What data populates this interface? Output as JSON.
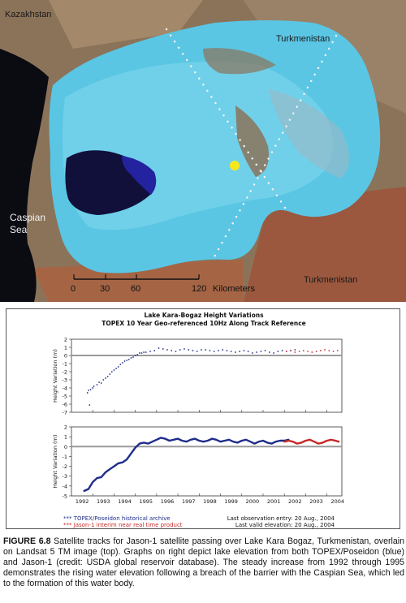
{
  "map": {
    "labels": {
      "kazakhstan": "Kazakhstan",
      "turkmenistan_north": "Turkmenistan",
      "turkmenistan_south": "Turkmenistan",
      "caspian_line1": "Caspian",
      "caspian_line2": "Sea"
    },
    "scale_bar": {
      "ticks": [
        "0",
        "30",
        "60",
        "120"
      ],
      "unit": "Kilometers"
    },
    "colors": {
      "land": "#8a6f54",
      "lake_light": "#5ac6e4",
      "lake_deep": "#10103a",
      "sea": "#0b0b12",
      "marker": "#f6e81c"
    }
  },
  "chart_data": [
    {
      "type": "scatter",
      "title": "Lake Kara-Bogaz Height Variations",
      "subtitle": "TOPEX 10 Year Geo-referenced 10Hz Along Track Reference",
      "xlabel": "",
      "ylabel": "Height Variation (m)",
      "xlim": [
        1992,
        2004.7
      ],
      "ylim": [
        -7,
        2
      ],
      "yticks": [
        "2",
        "1",
        "0",
        "-1",
        "-2",
        "-3",
        "-4",
        "-5",
        "-6",
        "-7"
      ],
      "series": [
        {
          "name": "TOPEX/Poseidon historical archive",
          "color": "#1f2d8a",
          "x": [
            1992.75,
            1992.8,
            1992.85,
            1992.9,
            1993.0,
            1993.05,
            1993.2,
            1993.3,
            1993.4,
            1993.5,
            1993.6,
            1993.7,
            1993.8,
            1993.9,
            1994.0,
            1994.1,
            1994.2,
            1994.3,
            1994.4,
            1994.5,
            1994.6,
            1994.7,
            1994.8,
            1994.9,
            1995.0,
            1995.1,
            1995.2,
            1995.3,
            1995.4,
            1995.5,
            1995.7,
            1995.9,
            1996.1,
            1996.3,
            1996.5,
            1996.7,
            1996.9,
            1997.1,
            1997.3,
            1997.5,
            1997.7,
            1997.9,
            1998.1,
            1998.3,
            1998.5,
            1998.7,
            1998.9,
            1999.1,
            1999.3,
            1999.5,
            1999.7,
            1999.9,
            2000.1,
            2000.3,
            2000.5,
            2000.7,
            2000.9,
            2001.1,
            2001.3,
            2001.5,
            2001.7,
            2001.9,
            2002.1,
            2002.3,
            2002.5
          ],
          "y": [
            -4.6,
            -4.3,
            -6.1,
            -4.2,
            -4.0,
            -3.8,
            -3.6,
            -3.3,
            -3.4,
            -3.0,
            -2.8,
            -2.6,
            -2.3,
            -2.0,
            -1.8,
            -1.6,
            -1.4,
            -1.1,
            -0.9,
            -0.7,
            -0.6,
            -0.5,
            -0.3,
            -0.2,
            0.0,
            0.1,
            0.3,
            0.3,
            0.4,
            0.4,
            0.5,
            0.6,
            0.9,
            0.8,
            0.7,
            0.6,
            0.5,
            0.7,
            0.8,
            0.7,
            0.6,
            0.5,
            0.7,
            0.7,
            0.6,
            0.5,
            0.6,
            0.7,
            0.6,
            0.5,
            0.4,
            0.5,
            0.6,
            0.5,
            0.3,
            0.4,
            0.5,
            0.6,
            0.4,
            0.3,
            0.5,
            0.6,
            0.5,
            0.6,
            0.7
          ]
        },
        {
          "name": "Jason-1 interim near real time product",
          "color": "#c62828",
          "x": [
            2002.1,
            2002.3,
            2002.5,
            2002.7,
            2002.9,
            2003.1,
            2003.3,
            2003.5,
            2003.7,
            2003.9,
            2004.1,
            2004.3,
            2004.5
          ],
          "y": [
            0.5,
            0.6,
            0.4,
            0.5,
            0.6,
            0.5,
            0.4,
            0.5,
            0.6,
            0.7,
            0.6,
            0.5,
            0.6
          ]
        }
      ]
    },
    {
      "type": "line",
      "xlabel": "",
      "ylabel": "Height Variation (m)",
      "xlim": [
        1992,
        2004.7
      ],
      "ylim": [
        -5,
        2
      ],
      "yticks": [
        "2",
        "1",
        "0",
        "-1",
        "-2",
        "-3",
        "-4",
        "-5"
      ],
      "xticks": [
        "1992",
        "1993",
        "1994",
        "1995",
        "1996",
        "1997",
        "1998",
        "1999",
        "2000",
        "2001",
        "2002",
        "2003",
        "2004"
      ],
      "series": [
        {
          "name": "TOPEX/Poseidon historical archive",
          "color": "#1f2d8a",
          "x": [
            1992.6,
            1992.8,
            1993.0,
            1993.2,
            1993.4,
            1993.6,
            1993.8,
            1994.0,
            1994.2,
            1994.4,
            1994.6,
            1994.8,
            1995.0,
            1995.2,
            1995.4,
            1995.6,
            1995.8,
            1996.0,
            1996.2,
            1996.4,
            1996.6,
            1996.8,
            1997.0,
            1997.2,
            1997.4,
            1997.6,
            1997.8,
            1998.0,
            1998.2,
            1998.4,
            1998.6,
            1998.8,
            1999.0,
            1999.2,
            1999.4,
            1999.6,
            1999.8,
            2000.0,
            2000.2,
            2000.4,
            2000.6,
            2000.8,
            2001.0,
            2001.2,
            2001.4,
            2001.6,
            2001.8,
            2002.0,
            2002.2
          ],
          "y": [
            -4.5,
            -4.3,
            -3.6,
            -3.2,
            -3.1,
            -2.6,
            -2.3,
            -2.0,
            -1.7,
            -1.6,
            -1.3,
            -0.7,
            -0.1,
            0.3,
            0.4,
            0.3,
            0.5,
            0.7,
            0.9,
            0.8,
            0.6,
            0.7,
            0.8,
            0.6,
            0.5,
            0.7,
            0.8,
            0.6,
            0.5,
            0.6,
            0.8,
            0.7,
            0.5,
            0.6,
            0.7,
            0.5,
            0.4,
            0.6,
            0.7,
            0.5,
            0.3,
            0.5,
            0.6,
            0.4,
            0.3,
            0.5,
            0.6,
            0.6,
            0.7
          ]
        },
        {
          "name": "Jason-1 interim near real time product",
          "color": "#c62828",
          "x": [
            2002.0,
            2002.2,
            2002.4,
            2002.6,
            2002.8,
            2003.0,
            2003.2,
            2003.4,
            2003.6,
            2003.8,
            2004.0,
            2004.2,
            2004.4,
            2004.55
          ],
          "y": [
            0.5,
            0.6,
            0.5,
            0.3,
            0.4,
            0.6,
            0.7,
            0.5,
            0.3,
            0.4,
            0.6,
            0.7,
            0.6,
            0.5
          ]
        }
      ]
    }
  ],
  "legend": {
    "topex": "*** TOPEX/Poseidon historical archive",
    "jason": "*** Jason-1 interim near real time product",
    "last_observation": "Last observation entry: 20 Aug., 2004",
    "last_valid": "Last valid elevation: 20 Aug., 2004"
  },
  "caption": {
    "label": "FIGURE 6.8",
    "text": " Satellite tracks for Jason-1 satellite passing over Lake Kara Bogaz, Turkmenistan, overlain on Landsat 5 TM image (top). Graphs on right depict lake elevation from both TOPEX/Poseidon (blue) and Jason-1 (credit: USDA global reservoir database). The steady increase from 1992 through 1995 demonstrates the rising water elevation following a breach of the barrier with the Caspian Sea, which led to the formation of this water body."
  }
}
